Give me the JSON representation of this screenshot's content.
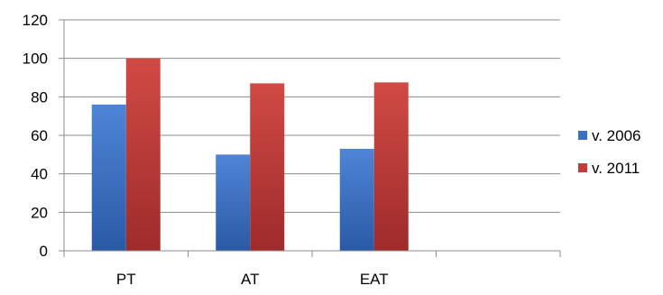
{
  "chart_data": {
    "type": "bar",
    "categories": [
      "PT",
      "AT",
      "EAT",
      ""
    ],
    "series": [
      {
        "name": "v. 2006",
        "values": [
          76,
          50,
          53,
          null
        ],
        "color": "#3b6fc4"
      },
      {
        "name": "v. 2011",
        "values": [
          100,
          87,
          87.5,
          null
        ],
        "color": "#c33b3b"
      }
    ],
    "ylim": [
      0,
      120
    ],
    "yticks": [
      0,
      20,
      40,
      60,
      80,
      100,
      120
    ],
    "grid": true,
    "legend": "right",
    "title": "",
    "xlabel": "",
    "ylabel": ""
  }
}
